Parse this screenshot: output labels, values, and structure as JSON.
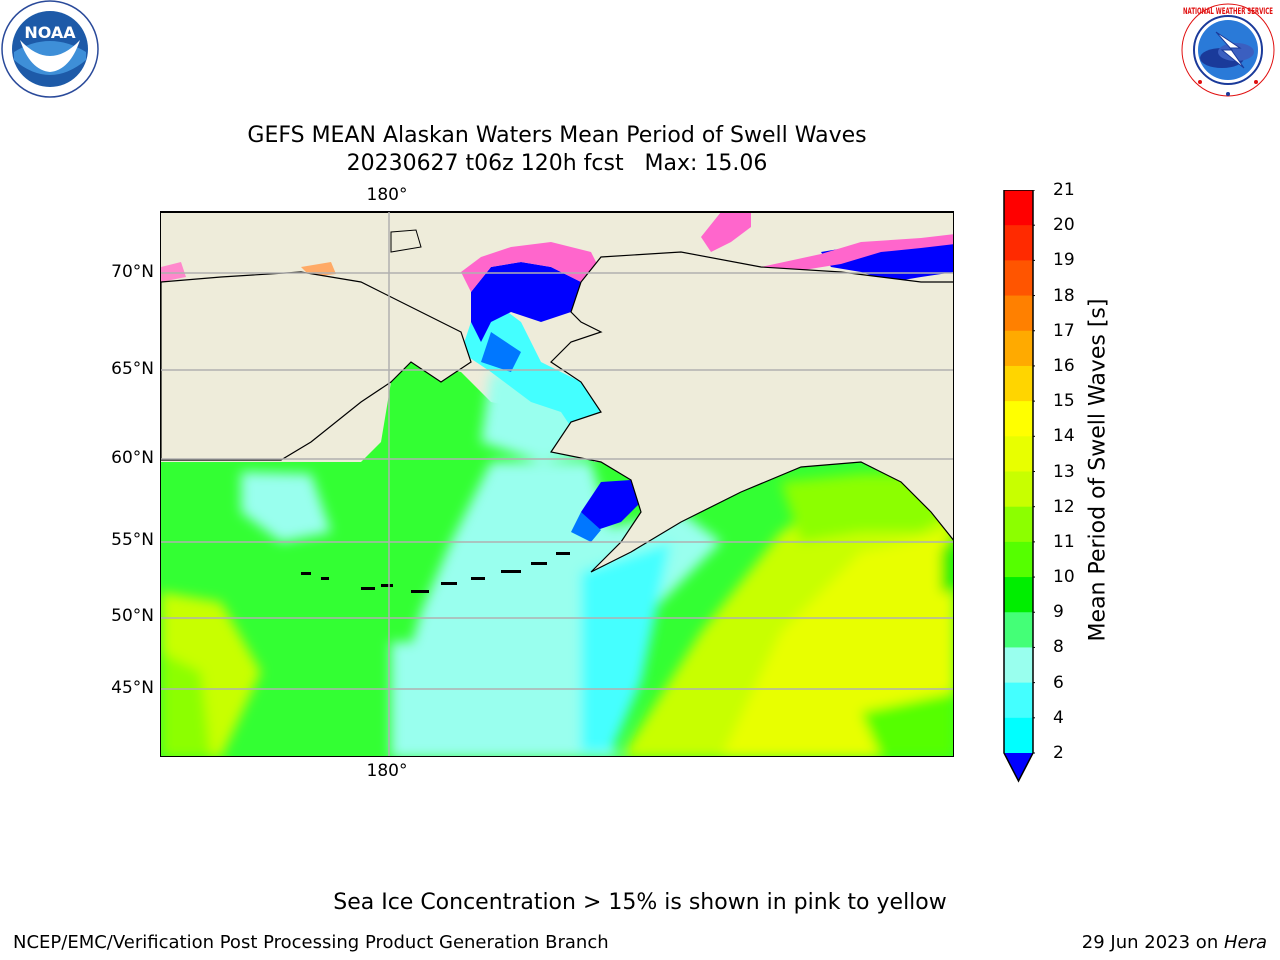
{
  "header": {
    "title_line1": "GEFS MEAN Alaskan Waters Mean Period of Swell Waves",
    "title_line2": "20230627 t06z 120h fcst   Max: 15.06"
  },
  "logos": {
    "left": {
      "name": "noaa-logo",
      "text": "NOAA",
      "ring_text": "NATIONAL OCEANIC AND ATMOSPHERIC ADMINISTRATION · U.S. DEPARTMENT OF COMMERCE"
    },
    "right": {
      "name": "nws-logo",
      "ring_text": "NATIONAL WEATHER SERVICE"
    }
  },
  "map": {
    "lat_labels": [
      "70°N",
      "65°N",
      "60°N",
      "55°N",
      "50°N",
      "45°N"
    ],
    "lon_label_top": "180°",
    "lon_label_bottom": "180°",
    "land_color": "#eeecda",
    "ocean_default": "#33ff33"
  },
  "colorbar": {
    "label": "Mean Period of Swell Waves [s]",
    "ticks": [
      "21",
      "20",
      "19",
      "18",
      "17",
      "16",
      "15",
      "14",
      "13",
      "12",
      "11",
      "10",
      "9",
      "8",
      "6",
      "4",
      "2"
    ],
    "colors": [
      "#ff0000",
      "#ff2a00",
      "#ff5500",
      "#ff8000",
      "#ffaa00",
      "#ffd500",
      "#ffff00",
      "#e8ff00",
      "#c8ff00",
      "#8cff00",
      "#55ff00",
      "#00ee00",
      "#44ff77",
      "#99ffee",
      "#44ffff",
      "#00ffff",
      "#0077ff"
    ],
    "extend_color": "#0000ff"
  },
  "footer": {
    "note": "Sea Ice Concentration > 15% is shown in pink to yellow",
    "credit": "NCEP/EMC/Verification Post Processing Product Generation Branch",
    "date": "29 Jun 2023 on ",
    "machine": "Hera"
  }
}
